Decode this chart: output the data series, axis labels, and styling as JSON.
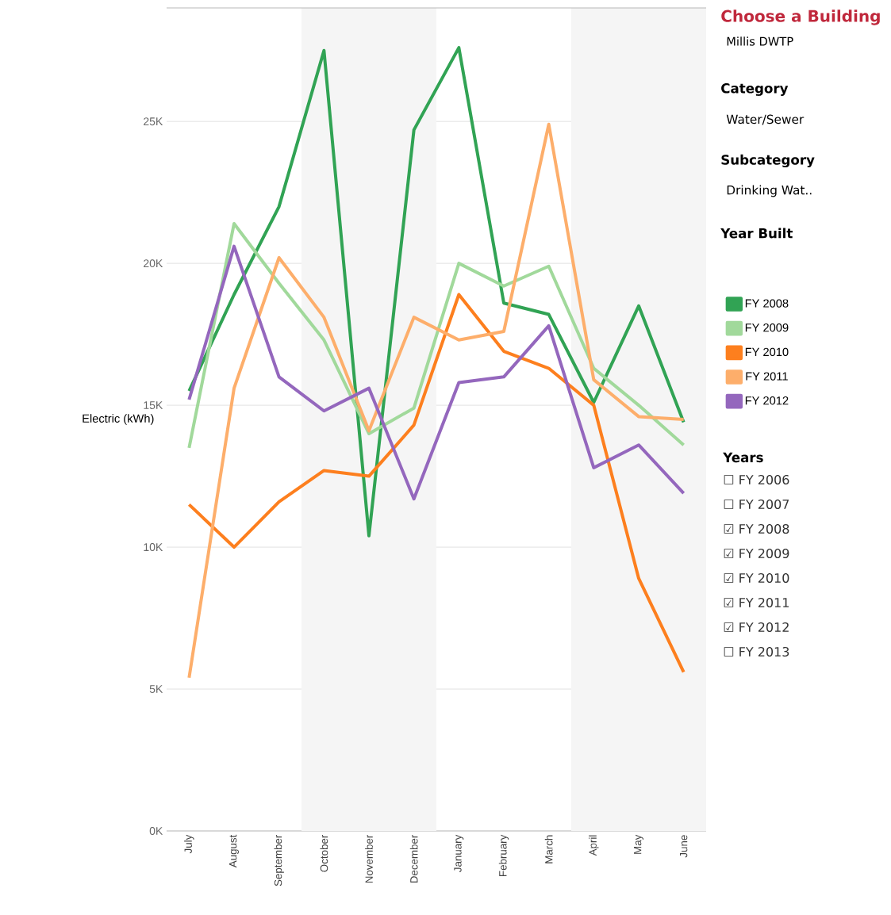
{
  "chart_data": {
    "type": "line",
    "ylabel": "Electric (kWh)",
    "categories": [
      "July",
      "August",
      "September",
      "October",
      "November",
      "December",
      "January",
      "February",
      "March",
      "April",
      "May",
      "June"
    ],
    "series": [
      {
        "name": "FY 2008",
        "color": "#31a354",
        "values": [
          15500,
          18900,
          22000,
          27500,
          10400,
          24700,
          27600,
          18600,
          18200,
          15100,
          18500,
          14400
        ]
      },
      {
        "name": "FY 2009",
        "color": "#a1d99b",
        "values": [
          13500,
          21400,
          19300,
          17300,
          14000,
          14900,
          20000,
          19200,
          19900,
          16300,
          15000,
          13600
        ]
      },
      {
        "name": "FY 2010",
        "color": "#fd7f1e",
        "values": [
          11500,
          10000,
          11600,
          12700,
          12500,
          14300,
          18900,
          16900,
          16300,
          15000,
          8900,
          5600
        ]
      },
      {
        "name": "FY 2011",
        "color": "#fdae6b",
        "values": [
          5400,
          15600,
          20200,
          18100,
          14100,
          18100,
          17300,
          17600,
          24900,
          15900,
          14600,
          14500
        ]
      },
      {
        "name": "FY 2012",
        "color": "#9467bd",
        "values": [
          15200,
          20600,
          16000,
          14800,
          15600,
          11700,
          15800,
          16000,
          17800,
          12800,
          13600,
          11900
        ]
      }
    ],
    "ylim": [
      0,
      29000
    ],
    "yticks": [
      {
        "value": 0,
        "label": "0K"
      },
      {
        "value": 5000,
        "label": "5K"
      },
      {
        "value": 10000,
        "label": "10K"
      },
      {
        "value": 15000,
        "label": "15K"
      },
      {
        "value": 20000,
        "label": "20K"
      },
      {
        "value": 25000,
        "label": "25K"
      }
    ],
    "grid": "y",
    "legend": "right",
    "bands": [
      {
        "axis": "x",
        "from": "October",
        "to": "December",
        "color": "#f5f5f5"
      },
      {
        "axis": "x",
        "from": "April",
        "to": "June",
        "color": "#f5f5f5"
      }
    ],
    "annotations": [
      "Choose a Building",
      "Millis DWTP",
      "Category",
      "Water/Sewer",
      "Subcategory",
      "Drinking Wat..",
      "Year Built",
      "Years",
      "☐ FY 2006",
      "☐ FY 2007",
      "☑ FY 2008",
      "☑ FY 2009",
      "☑ FY 2010",
      "☑ FY 2011",
      "☑ FY 2012",
      "☐ FY 2013"
    ]
  }
}
